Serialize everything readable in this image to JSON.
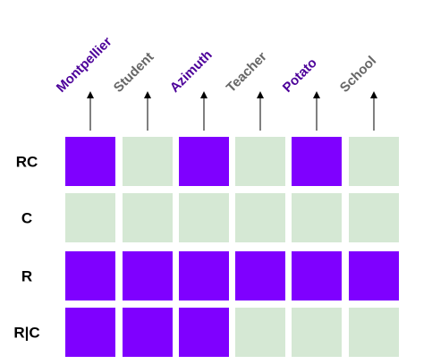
{
  "colors": {
    "on": "#7f00ff",
    "off": "#d5e8d4",
    "highlight_label": "#4c0099",
    "normal_label": "#666666",
    "arrow": "#000000"
  },
  "columns": [
    {
      "label": "Montpellier",
      "highlight": true
    },
    {
      "label": "Student",
      "highlight": false
    },
    {
      "label": "Azimuth",
      "highlight": true
    },
    {
      "label": "Teacher",
      "highlight": false
    },
    {
      "label": "Potato",
      "highlight": true
    },
    {
      "label": "School",
      "highlight": false
    }
  ],
  "rows": [
    {
      "label": "RC",
      "cells": [
        1,
        0,
        1,
        0,
        1,
        0
      ]
    },
    {
      "label": "C",
      "cells": [
        0,
        0,
        0,
        0,
        0,
        0
      ]
    },
    {
      "label": "R",
      "cells": [
        1,
        1,
        1,
        1,
        1,
        1
      ]
    },
    {
      "label": "R|C",
      "cells": [
        1,
        1,
        1,
        0,
        0,
        0
      ]
    }
  ]
}
